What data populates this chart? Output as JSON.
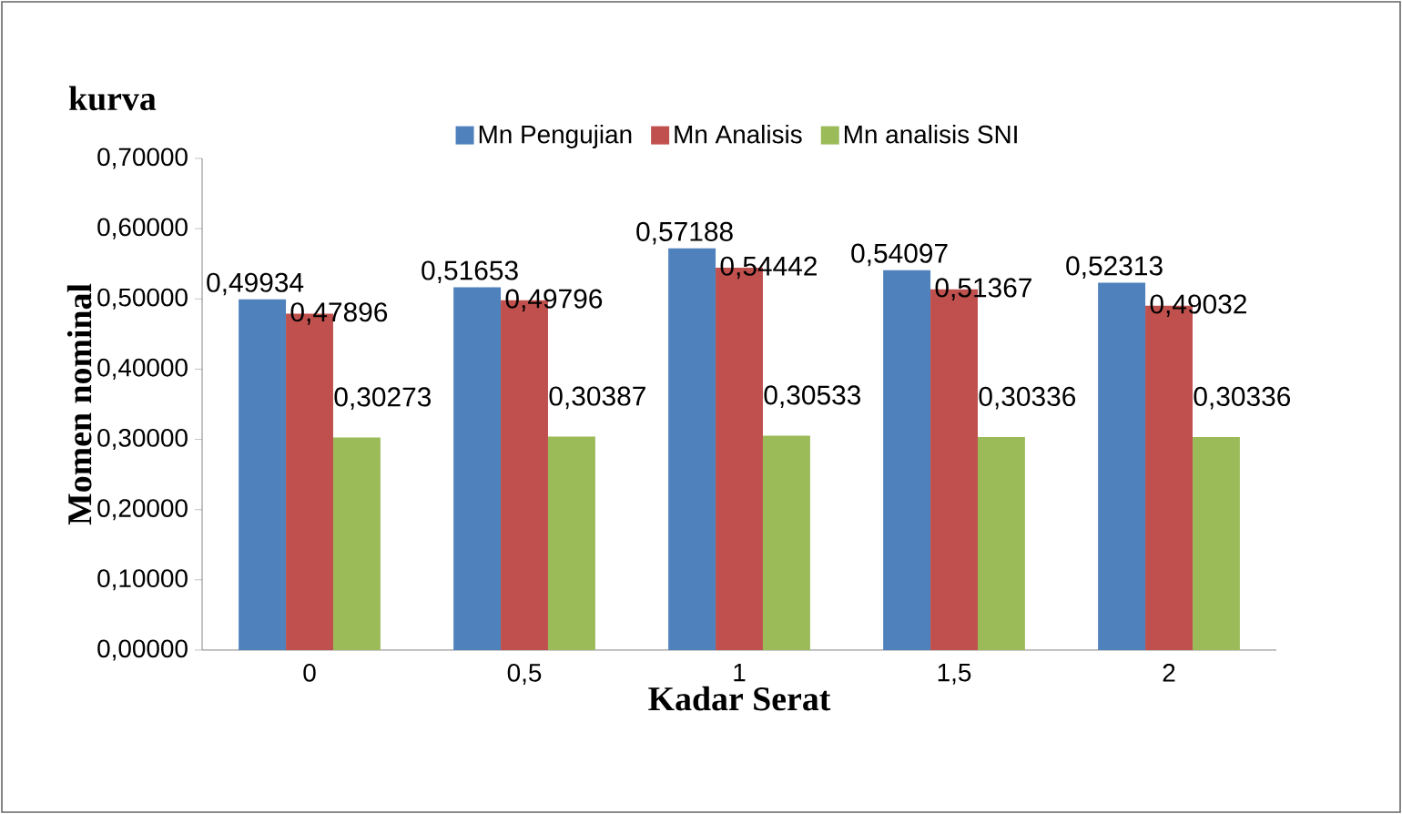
{
  "chart_data": {
    "type": "bar",
    "title": "kurva",
    "xlabel": "Kadar Serat",
    "ylabel": "Momen nominal",
    "categories": [
      "0",
      "0,5",
      "1",
      "1,5",
      "2"
    ],
    "series": [
      {
        "name": "Mn Pengujian",
        "color": "#4f81bd",
        "values": [
          0.49934,
          0.51653,
          0.57188,
          0.54097,
          0.52313
        ],
        "value_labels": [
          "0,49934",
          "0,51653",
          "0,57188",
          "0,54097",
          "0,52313"
        ]
      },
      {
        "name": "Mn Analisis",
        "color": "#c0504d",
        "values": [
          0.47896,
          0.49796,
          0.54442,
          0.51367,
          0.49032
        ],
        "value_labels": [
          "0,47896",
          "0,49796",
          "0,54442",
          "0,51367",
          "0,49032"
        ]
      },
      {
        "name": "Mn analisis SNI",
        "color": "#9bbb59",
        "values": [
          0.30273,
          0.30387,
          0.30533,
          0.30336,
          0.30336
        ],
        "value_labels": [
          "0,30273",
          "0,30387",
          "0,30533",
          "0,30336",
          "0,30336"
        ]
      }
    ],
    "ylim": [
      0,
      0.7
    ],
    "yticks": [
      {
        "value": 0,
        "label": "0,00000"
      },
      {
        "value": 0.1,
        "label": "0,10000"
      },
      {
        "value": 0.2,
        "label": "0,20000"
      },
      {
        "value": 0.3,
        "label": "0,30000"
      },
      {
        "value": 0.4,
        "label": "0,40000"
      },
      {
        "value": 0.5,
        "label": "0,50000"
      },
      {
        "value": 0.6,
        "label": "0,60000"
      },
      {
        "value": 0.7,
        "label": "0,70000"
      }
    ],
    "legend": "top"
  }
}
